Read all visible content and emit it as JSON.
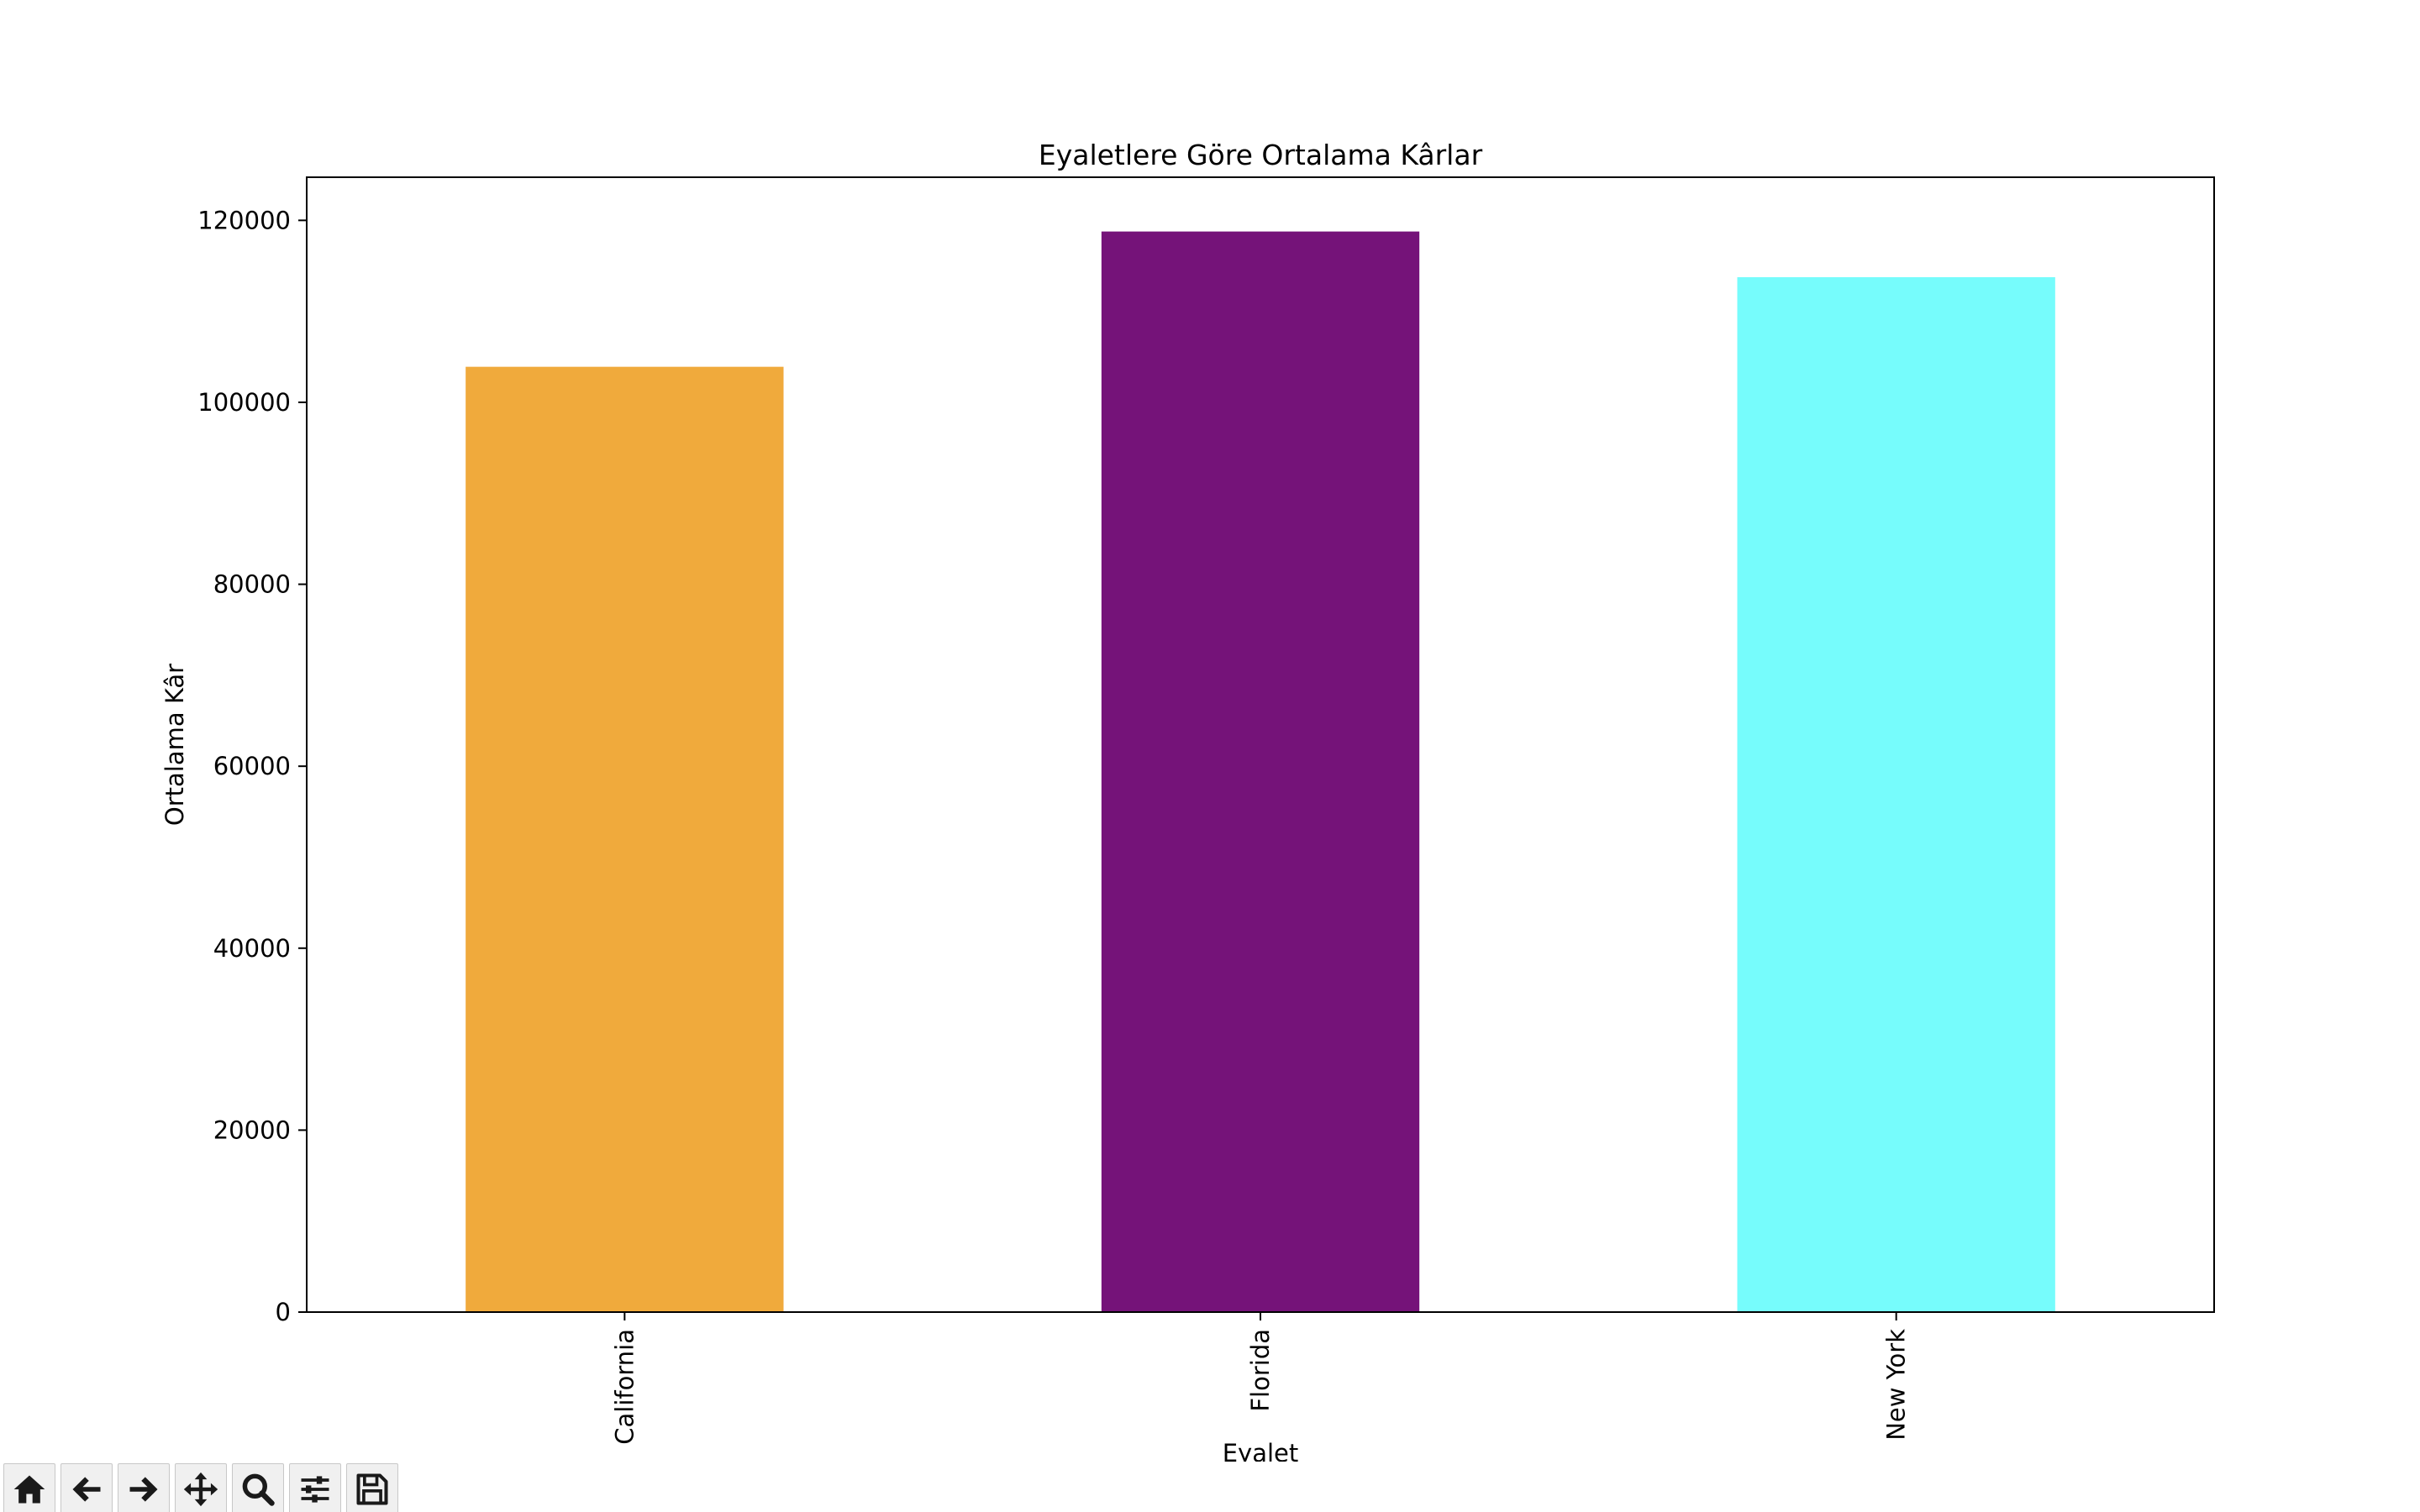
{
  "toolbar": {
    "buttons": [
      {
        "name": "home",
        "icon": "home-icon"
      },
      {
        "name": "back",
        "icon": "arrow-left-icon"
      },
      {
        "name": "forward",
        "icon": "arrow-right-icon"
      },
      {
        "name": "pan",
        "icon": "move-icon"
      },
      {
        "name": "zoom",
        "icon": "search-icon"
      },
      {
        "name": "configure-subplots",
        "icon": "sliders-icon"
      },
      {
        "name": "save",
        "icon": "save-icon"
      }
    ]
  },
  "chart_data": {
    "type": "bar",
    "title": "Eyaletlere Göre Ortalama Kârlar",
    "xlabel": "Eyalet",
    "ylabel": "Ortalama Kâr",
    "categories": [
      "California",
      "Florida",
      "New York"
    ],
    "values": [
      103905,
      118774,
      113756
    ],
    "colors": [
      "#f0aa3c",
      "#751379",
      "#76fcfc"
    ],
    "ylim": [
      0,
      124740
    ],
    "yticks": [
      0,
      20000,
      40000,
      60000,
      80000,
      100000,
      120000
    ],
    "ytick_labels": [
      "0",
      "20000",
      "40000",
      "60000",
      "80000",
      "100000",
      "120000"
    ],
    "grid": false,
    "xtick_rotation": "vertical"
  }
}
